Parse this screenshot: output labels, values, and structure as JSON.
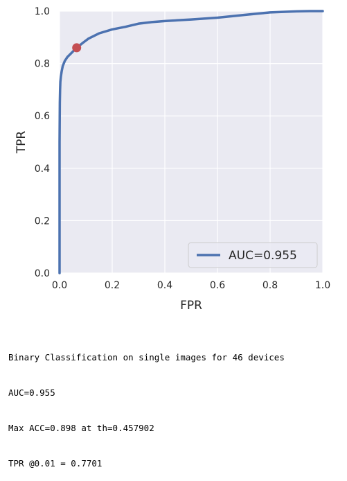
{
  "chart_data": {
    "type": "line",
    "title": "",
    "xlabel": "FPR",
    "ylabel": "TPR",
    "xlim": [
      0.0,
      1.0
    ],
    "ylim": [
      0.0,
      1.0
    ],
    "x_ticks": [
      "0.0",
      "0.2",
      "0.4",
      "0.6",
      "0.8",
      "1.0"
    ],
    "y_ticks": [
      "0.0",
      "0.2",
      "0.4",
      "0.6",
      "0.8",
      "1.0"
    ],
    "grid": true,
    "legend_position": "lower-right",
    "series": [
      {
        "name": "AUC=0.955",
        "color": "#4c72b0",
        "x": [
          0.0,
          0.0,
          0.001,
          0.002,
          0.003,
          0.005,
          0.008,
          0.012,
          0.02,
          0.03,
          0.045,
          0.065,
          0.09,
          0.11,
          0.15,
          0.2,
          0.25,
          0.3,
          0.35,
          0.4,
          0.5,
          0.6,
          0.7,
          0.75,
          0.8,
          0.85,
          0.9,
          0.95,
          1.0
        ],
        "y": [
          0.0,
          0.5,
          0.65,
          0.7,
          0.73,
          0.75,
          0.77,
          0.79,
          0.81,
          0.825,
          0.84,
          0.86,
          0.88,
          0.895,
          0.915,
          0.93,
          0.94,
          0.952,
          0.958,
          0.962,
          0.968,
          0.975,
          0.985,
          0.99,
          0.995,
          0.997,
          0.999,
          1.0,
          1.0
        ]
      }
    ],
    "marker": {
      "x": 0.065,
      "y": 0.86,
      "color": "#c44e52"
    }
  },
  "caption": {
    "line1": "Binary Classification on single images for 46 devices",
    "line2": "AUC=0.955",
    "line3": "Max ACC=0.898 at th=0.457902",
    "line4": "TPR @0.01 = 0.7701"
  },
  "colors": {
    "plot_background": "#eaeaf2",
    "grid": "#ffffff",
    "line": "#4c72b0",
    "marker": "#c44e52"
  }
}
